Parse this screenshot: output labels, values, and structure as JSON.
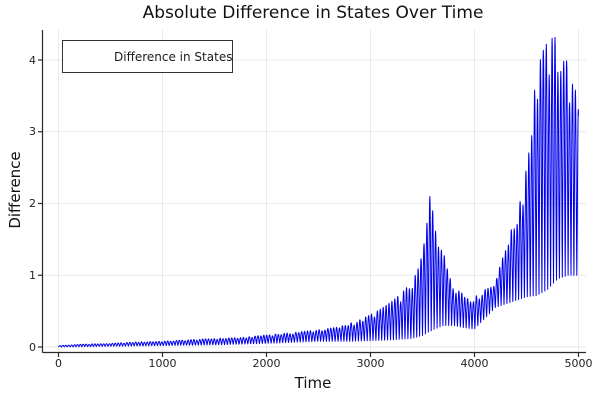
{
  "title": "Absolute Difference in States Over Time",
  "axes": {
    "x": {
      "label": "Time",
      "ticks": [
        0,
        1000,
        2000,
        3000,
        4000,
        5000
      ],
      "range": [
        -150,
        5065
      ]
    },
    "y": {
      "label": "Difference",
      "ticks": [
        0,
        1,
        2,
        3,
        4
      ],
      "range": [
        -0.08,
        4.42
      ]
    }
  },
  "legend": {
    "position": "top-left",
    "entries": [
      {
        "label": "Difference in States",
        "color": "#0000ee"
      }
    ]
  },
  "colors": {
    "line": "#0000ee",
    "grid": "#e9e9e9",
    "spine": "#2a2a2a",
    "text": "#1c1c1c",
    "background": "#ffffff"
  },
  "chart_data": {
    "type": "line",
    "title": "Absolute Difference in States Over Time",
    "xlabel": "Time",
    "ylabel": "Difference",
    "grid": true,
    "legend_position": "top-left",
    "series": [
      {
        "name": "Difference in States",
        "color": "#0000ee"
      }
    ],
    "xlim": [
      -150,
      5065
    ],
    "ylim": [
      -0.08,
      4.42
    ],
    "x_ticks": [
      0,
      1000,
      2000,
      3000,
      4000,
      5000
    ],
    "y_ticks": [
      0,
      1,
      2,
      3,
      4
    ],
    "oscillation_period": 28,
    "envelope_top": [
      [
        0,
        0.02
      ],
      [
        250,
        0.04
      ],
      [
        500,
        0.05
      ],
      [
        750,
        0.07
      ],
      [
        1000,
        0.08
      ],
      [
        1250,
        0.1
      ],
      [
        1500,
        0.12
      ],
      [
        1750,
        0.13
      ],
      [
        2000,
        0.17
      ],
      [
        2250,
        0.2
      ],
      [
        2500,
        0.24
      ],
      [
        2700,
        0.28
      ],
      [
        2800,
        0.33
      ],
      [
        2900,
        0.38
      ],
      [
        3000,
        0.45
      ],
      [
        3100,
        0.53
      ],
      [
        3200,
        0.63
      ],
      [
        3300,
        0.75
      ],
      [
        3400,
        0.92
      ],
      [
        3450,
        1.05
      ],
      [
        3500,
        1.3
      ],
      [
        3540,
        1.7
      ],
      [
        3580,
        2.23
      ],
      [
        3620,
        1.85
      ],
      [
        3660,
        1.55
      ],
      [
        3700,
        1.32
      ],
      [
        3750,
        1.08
      ],
      [
        3800,
        0.9
      ],
      [
        3850,
        0.78
      ],
      [
        3900,
        0.73
      ],
      [
        3950,
        0.7
      ],
      [
        4000,
        0.7
      ],
      [
        4050,
        0.74
      ],
      [
        4100,
        0.8
      ],
      [
        4150,
        0.85
      ],
      [
        4200,
        0.92
      ],
      [
        4250,
        1.15
      ],
      [
        4300,
        1.45
      ],
      [
        4350,
        1.62
      ],
      [
        4400,
        1.8
      ],
      [
        4450,
        2.1
      ],
      [
        4500,
        2.5
      ],
      [
        4550,
        3.3
      ],
      [
        4600,
        3.8
      ],
      [
        4650,
        4.1
      ],
      [
        4700,
        4.25
      ],
      [
        4760,
        4.32
      ],
      [
        4820,
        4.3
      ],
      [
        4860,
        4.15
      ],
      [
        4900,
        3.9
      ],
      [
        4950,
        3.62
      ],
      [
        5000,
        3.52
      ]
    ],
    "envelope_bottom": [
      [
        0,
        0.0
      ],
      [
        500,
        0.01
      ],
      [
        1000,
        0.02
      ],
      [
        1500,
        0.03
      ],
      [
        2000,
        0.05
      ],
      [
        2500,
        0.08
      ],
      [
        2800,
        0.08
      ],
      [
        3000,
        0.09
      ],
      [
        3200,
        0.1
      ],
      [
        3400,
        0.12
      ],
      [
        3500,
        0.16
      ],
      [
        3600,
        0.24
      ],
      [
        3700,
        0.3
      ],
      [
        3800,
        0.3
      ],
      [
        3900,
        0.27
      ],
      [
        4000,
        0.25
      ],
      [
        4100,
        0.4
      ],
      [
        4200,
        0.55
      ],
      [
        4300,
        0.6
      ],
      [
        4400,
        0.65
      ],
      [
        4500,
        0.7
      ],
      [
        4600,
        0.72
      ],
      [
        4700,
        0.8
      ],
      [
        4800,
        0.95
      ],
      [
        4900,
        1.0
      ],
      [
        5000,
        1.0
      ]
    ],
    "annotations": {
      "first_peak": {
        "t": 3580,
        "value": 2.23
      },
      "global_max": {
        "t": 4780,
        "value": 4.31
      },
      "end_value_top": {
        "t": 5000,
        "value": 3.5
      }
    }
  }
}
